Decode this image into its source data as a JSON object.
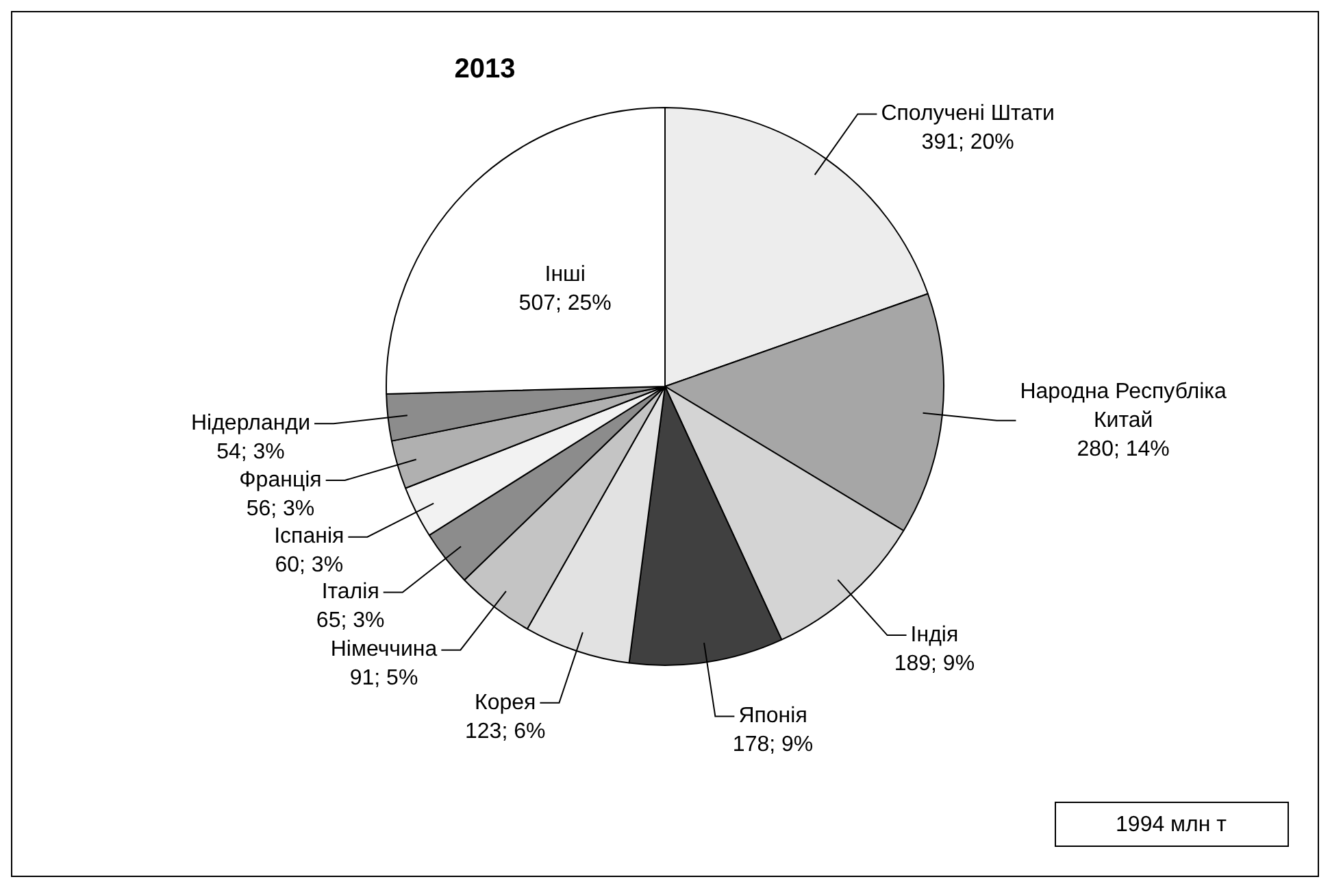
{
  "chart_data": {
    "type": "pie",
    "title": "2013",
    "categories": [
      "Сполучені Штати",
      "Народна Республіка Китай",
      "Індія",
      "Японія",
      "Корея",
      "Німеччина",
      "Італія",
      "Іспанія",
      "Франція",
      "Нідерланди",
      "Інші"
    ],
    "values": [
      391,
      280,
      189,
      178,
      123,
      91,
      65,
      60,
      56,
      54,
      507
    ],
    "value_labels": [
      "391; 20%",
      "280; 14%",
      "189; 9%",
      "178; 9%",
      "123; 6%",
      "91; 5%",
      "65; 3%",
      "60; 3%",
      "56; 3%",
      "54; 3%",
      "507; 25%"
    ],
    "colors": [
      "#ededed",
      "#a6a6a6",
      "#d4d4d4",
      "#404040",
      "#e2e2e2",
      "#c4c4c4",
      "#8c8c8c",
      "#f2f2f2",
      "#b0b0b0",
      "#8c8c8c",
      "#ffffff"
    ],
    "legend": false,
    "annotations": [
      "1994 млн т"
    ]
  }
}
